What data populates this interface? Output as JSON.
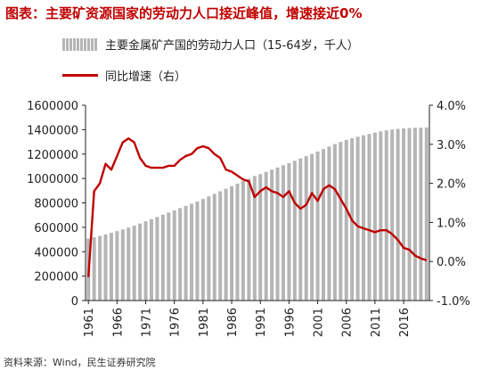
{
  "title": "图表：主要矿资源国家的劳动力人口接近峰值，增速接近0%",
  "source": "资料来源：Wind，民生证券研究院",
  "colors": {
    "bars": "#b5b5b5",
    "line": "#c00000",
    "title": "#c00000"
  },
  "chart_data": {
    "type": "bar",
    "x": [
      1961,
      1962,
      1963,
      1964,
      1965,
      1966,
      1967,
      1968,
      1969,
      1970,
      1971,
      1972,
      1973,
      1974,
      1975,
      1976,
      1977,
      1978,
      1979,
      1980,
      1981,
      1982,
      1983,
      1984,
      1985,
      1986,
      1987,
      1988,
      1989,
      1990,
      1991,
      1992,
      1993,
      1994,
      1995,
      1996,
      1997,
      1998,
      1999,
      2000,
      2001,
      2002,
      2003,
      2004,
      2005,
      2006,
      2007,
      2008,
      2009,
      2010,
      2011,
      2012,
      2013,
      2014,
      2015,
      2016,
      2017,
      2018,
      2019,
      2020
    ],
    "x_tick_labels": [
      "1961",
      "1966",
      "1971",
      "1976",
      "1981",
      "1986",
      "1991",
      "1996",
      "2001",
      "2006",
      "2011",
      "2016"
    ],
    "y_left": {
      "min": 0,
      "max": 1600000,
      "ticks": [
        "0",
        "200000",
        "400000",
        "600000",
        "800000",
        "1000000",
        "1200000",
        "1400000",
        "1600000"
      ]
    },
    "y_right": {
      "min": -1.0,
      "max": 4.0,
      "ticks": [
        "-1.0%",
        "0.0%",
        "1.0%",
        "2.0%",
        "3.0%",
        "4.0%"
      ]
    },
    "grid": false,
    "legend_placement": "top-left",
    "series": [
      {
        "name": "主要金属矿产国的劳动力人口（15-64岁，千人）",
        "kind": "bar",
        "axis": "left",
        "values": [
          508000,
          518000,
          530000,
          542000,
          555000,
          569000,
          583000,
          598000,
          614000,
          631000,
          649000,
          667000,
          685000,
          703000,
          721000,
          739000,
          757000,
          775000,
          793000,
          812000,
          832000,
          853000,
          874000,
          895000,
          916000,
          937000,
          958000,
          979000,
          999000,
          1020000,
          1036000,
          1054000,
          1072000,
          1090000,
          1108000,
          1126000,
          1145000,
          1164000,
          1183000,
          1201000,
          1221000,
          1241000,
          1262000,
          1282000,
          1300000,
          1316000,
          1330000,
          1342000,
          1354000,
          1365000,
          1376000,
          1386000,
          1394000,
          1401000,
          1406000,
          1410000,
          1413000,
          1415000,
          1416000,
          1417000
        ]
      },
      {
        "name": "同比增速（右）",
        "kind": "line",
        "axis": "right",
        "values": [
          -0.4,
          1.8,
          2.0,
          2.5,
          2.35,
          2.7,
          3.05,
          3.15,
          3.05,
          2.65,
          2.45,
          2.4,
          2.4,
          2.4,
          2.45,
          2.45,
          2.6,
          2.7,
          2.75,
          2.9,
          2.95,
          2.9,
          2.75,
          2.65,
          2.35,
          2.3,
          2.2,
          2.1,
          2.05,
          1.65,
          1.8,
          1.9,
          1.8,
          1.75,
          1.65,
          1.8,
          1.5,
          1.35,
          1.45,
          1.75,
          1.55,
          1.85,
          1.95,
          1.85,
          1.6,
          1.35,
          1.05,
          0.9,
          0.85,
          0.8,
          0.75,
          0.8,
          0.8,
          0.7,
          0.55,
          0.35,
          0.3,
          0.15,
          0.08,
          0.03
        ]
      }
    ]
  }
}
